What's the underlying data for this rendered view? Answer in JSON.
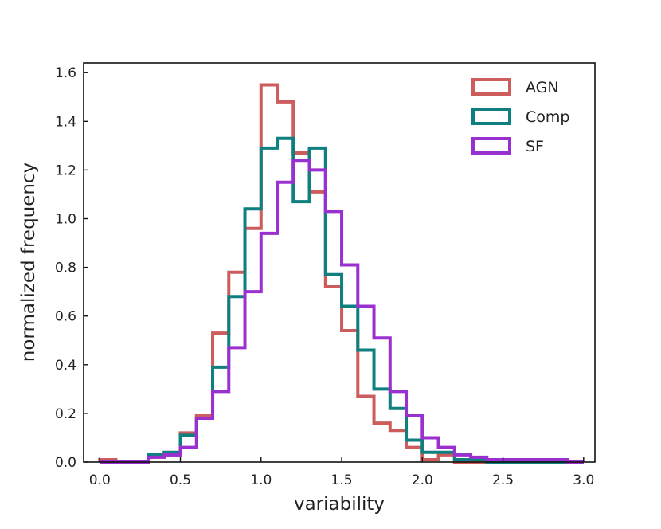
{
  "chart_data": {
    "type": "step-histogram",
    "xlabel": "variability",
    "ylabel": "normalized frequency",
    "xlim": [
      -0.1,
      3.07
    ],
    "ylim": [
      0,
      1.64
    ],
    "xticks": [
      "0.0",
      "0.5",
      "1.0",
      "1.5",
      "2.0",
      "2.5",
      "3.0"
    ],
    "yticks": [
      "0.0",
      "0.2",
      "0.4",
      "0.6",
      "0.8",
      "1.0",
      "1.2",
      "1.4",
      "1.6"
    ],
    "bin_edges": [
      0.0,
      0.1,
      0.2,
      0.3,
      0.4,
      0.5,
      0.6,
      0.7,
      0.8,
      0.9,
      1.0,
      1.1,
      1.2,
      1.3,
      1.4,
      1.5,
      1.6,
      1.7,
      1.8,
      1.9,
      2.0,
      2.1,
      2.2,
      2.3,
      2.4,
      2.5,
      2.6,
      2.7,
      2.8,
      2.9,
      3.0
    ],
    "legend_position": "top-right",
    "series": [
      {
        "name": "AGN",
        "color": "#cd5c5c",
        "values": [
          0.01,
          0.0,
          0.0,
          0.02,
          0.03,
          0.12,
          0.19,
          0.53,
          0.78,
          0.96,
          1.55,
          1.48,
          1.27,
          1.11,
          0.72,
          0.54,
          0.27,
          0.16,
          0.13,
          0.06,
          0.01,
          0.03,
          0.0,
          0.0,
          0.0,
          0.0,
          0.0,
          0.0,
          0.0,
          0.0
        ]
      },
      {
        "name": "Comp",
        "color": "#0f7f7f",
        "values": [
          0.0,
          0.0,
          0.0,
          0.03,
          0.04,
          0.11,
          0.18,
          0.39,
          0.68,
          1.04,
          1.29,
          1.33,
          1.07,
          1.29,
          0.77,
          0.64,
          0.46,
          0.3,
          0.22,
          0.09,
          0.04,
          0.04,
          0.01,
          0.01,
          0.0,
          0.0,
          0.0,
          0.0,
          0.0,
          0.0
        ]
      },
      {
        "name": "SF",
        "color": "#9b30d0",
        "values": [
          0.0,
          0.0,
          0.0,
          0.02,
          0.03,
          0.06,
          0.18,
          0.29,
          0.47,
          0.7,
          0.94,
          1.15,
          1.24,
          1.2,
          1.03,
          0.81,
          0.64,
          0.51,
          0.29,
          0.19,
          0.1,
          0.06,
          0.03,
          0.02,
          0.01,
          0.01,
          0.01,
          0.01,
          0.01,
          0.0
        ]
      }
    ]
  }
}
